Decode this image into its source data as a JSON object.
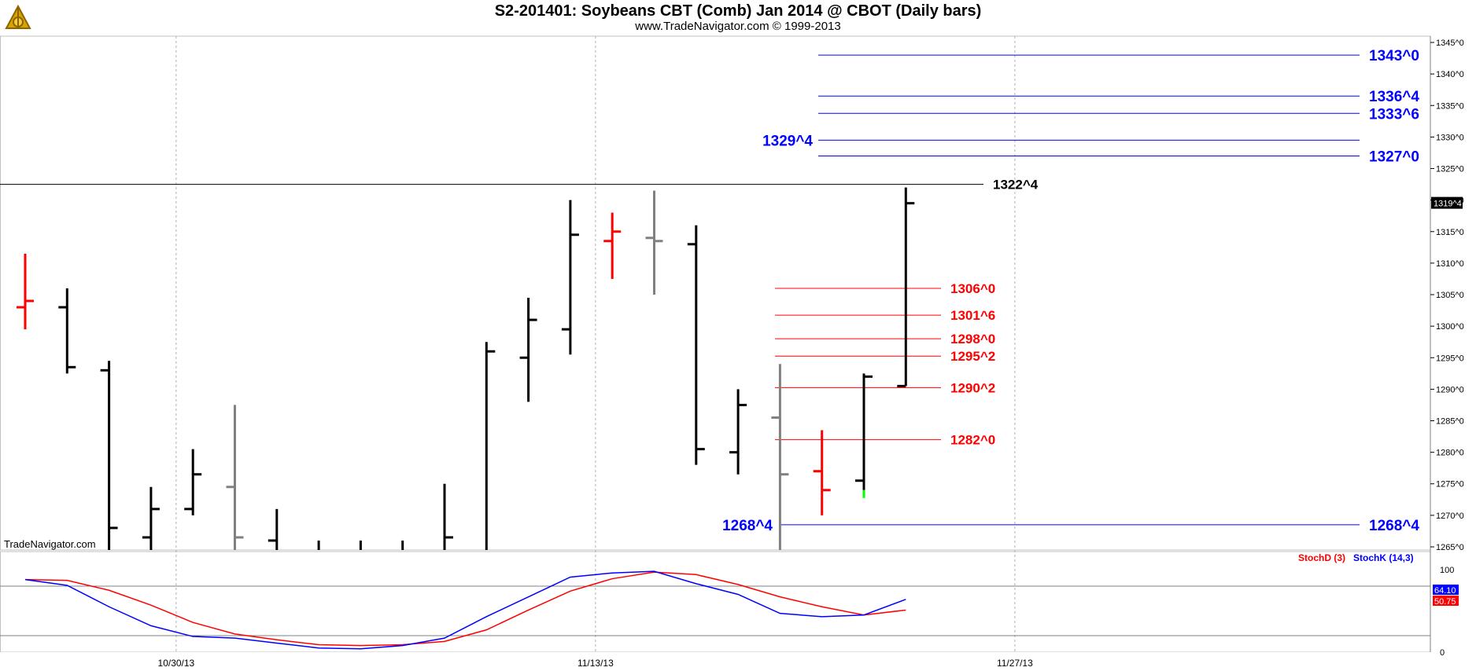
{
  "header": {
    "title": "S2-201401:  Soybeans CBT (Comb) Jan 2014 @ CBOT  (Daily bars)",
    "subtitle": "www.TradeNavigator.com © 1999-2013"
  },
  "watermark": "TradeNavigator.com",
  "colors": {
    "up": "#000000",
    "down": "#ff0000",
    "neutral": "#808080",
    "blue": "#0000ff",
    "red": "#ff0000"
  },
  "chart_data": [
    {
      "type": "bar",
      "subtype": "ohlc",
      "y_axis_ticks": [
        "1345^0",
        "1340^0",
        "1335^0",
        "1330^0",
        "1325^0",
        "1320^0",
        "1315^0",
        "1310^0",
        "1305^0",
        "1300^0",
        "1295^0",
        "1290^0",
        "1285^0",
        "1280^0",
        "1275^0",
        "1270^0",
        "1265^0"
      ],
      "ylim": [
        1264.5,
        1346
      ],
      "x_tick_labels": [
        {
          "label": "10/30/13",
          "index": 3.6
        },
        {
          "label": "11/13/13",
          "index": 13.6
        },
        {
          "label": "11/27/13",
          "index": 23.6
        }
      ],
      "last_price": "1319^4",
      "bars": [
        {
          "o": 1303.0,
          "h": 1311.5,
          "l": 1299.5,
          "c": 1304.0,
          "color": "down"
        },
        {
          "o": 1303.0,
          "h": 1306.0,
          "l": 1292.5,
          "c": 1293.5,
          "color": "up"
        },
        {
          "o": 1293.0,
          "h": 1294.5,
          "l": 1263.0,
          "c": 1268.0,
          "color": "up"
        },
        {
          "o": 1266.5,
          "h": 1274.5,
          "l": 1260.0,
          "c": 1271.0,
          "color": "up"
        },
        {
          "o": 1271.0,
          "h": 1280.5,
          "l": 1270.0,
          "c": 1276.5,
          "color": "up"
        },
        {
          "o": 1274.5,
          "h": 1287.5,
          "l": 1262.0,
          "c": 1266.5,
          "color": "neutral"
        },
        {
          "o": 1266.0,
          "h": 1271.0,
          "l": 1260.0,
          "c": 1264.0,
          "color": "up"
        },
        {
          "o": 1262.0,
          "h": 1266.0,
          "l": 1258.0,
          "c": 1264.0,
          "color": "up"
        },
        {
          "o": 1262.0,
          "h": 1266.0,
          "l": 1258.0,
          "c": 1264.0,
          "color": "up"
        },
        {
          "o": 1262.0,
          "h": 1266.0,
          "l": 1258.0,
          "c": 1264.0,
          "color": "up"
        },
        {
          "o": 1262.0,
          "h": 1275.0,
          "l": 1258.0,
          "c": 1266.5,
          "color": "up"
        },
        {
          "o": 1264.0,
          "h": 1297.5,
          "l": 1258.0,
          "c": 1296.0,
          "color": "up"
        },
        {
          "o": 1295.0,
          "h": 1304.5,
          "l": 1288.0,
          "c": 1301.0,
          "color": "up"
        },
        {
          "o": 1299.5,
          "h": 1320.0,
          "l": 1295.5,
          "c": 1314.5,
          "color": "up"
        },
        {
          "o": 1313.5,
          "h": 1318.0,
          "l": 1307.5,
          "c": 1315.0,
          "color": "down"
        },
        {
          "o": 1314.0,
          "h": 1321.5,
          "l": 1305.0,
          "c": 1313.5,
          "color": "neutral"
        },
        {
          "o": 1313.0,
          "h": 1316.0,
          "l": 1278.0,
          "c": 1280.5,
          "color": "up"
        },
        {
          "o": 1280.0,
          "h": 1290.0,
          "l": 1276.5,
          "c": 1287.5,
          "color": "up"
        },
        {
          "o": 1285.5,
          "h": 1294.0,
          "l": 1263.0,
          "c": 1276.5,
          "color": "neutral"
        },
        {
          "o": 1277.0,
          "h": 1283.5,
          "l": 1270.0,
          "c": 1274.0,
          "color": "down"
        },
        {
          "o": 1275.5,
          "h": 1292.5,
          "l": 1274.0,
          "c": 1292.0,
          "color": "up",
          "tail": "#00ff00"
        },
        {
          "o": 1290.5,
          "h": 1322.0,
          "l": 1290.5,
          "c": 1319.5,
          "color": "up"
        }
      ],
      "levels_blue_right": [
        "1343^0",
        "1336^4",
        "1333^6",
        "1327^0",
        "1268^4"
      ],
      "level_blue_left": "1329^4",
      "level_blue_left2": "1268^4",
      "level_black": "1322^4",
      "levels_red": [
        "1306^0",
        "1301^6",
        "1298^0",
        "1295^2",
        "1290^2",
        "1282^0"
      ]
    },
    {
      "type": "line",
      "indicator": "Stochastic",
      "y_axis_ticks": [
        "100",
        "0"
      ],
      "ylim": [
        0,
        100
      ],
      "series": [
        {
          "name": "StochD (3)",
          "color": "#ff0000",
          "values": [
            88,
            87,
            75,
            57,
            36,
            22,
            15,
            9,
            8,
            9,
            13,
            27,
            51,
            74,
            89,
            97,
            94,
            82,
            67,
            55,
            45,
            51
          ]
        },
        {
          "name": "StochK (14,3)",
          "color": "#0000ff",
          "values": [
            88,
            81,
            55,
            32,
            19,
            17,
            11,
            5,
            4,
            8,
            17,
            43,
            67,
            91,
            96,
            98,
            83,
            70,
            47,
            43,
            45,
            64
          ]
        }
      ],
      "last_values": {
        "stochK": "64.10",
        "stochD": "50.75"
      }
    }
  ]
}
